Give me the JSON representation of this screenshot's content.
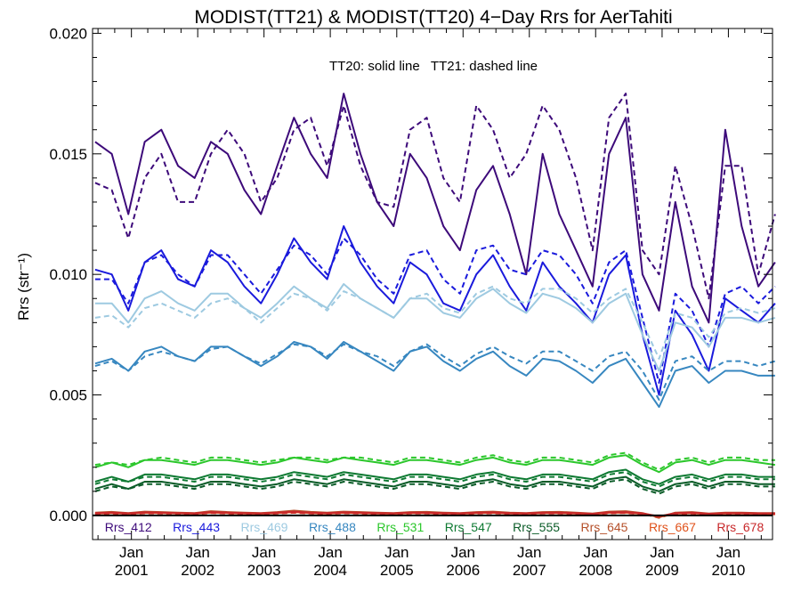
{
  "chart_data": {
    "type": "line",
    "title": "MODIST(TT21) & MODIST(TT20) 4−Day Rrs for AerTahiti",
    "ylabel": "Rrs (str⁻¹)",
    "annotation": "TT20: solid line   TT21: dashed line",
    "x_range": [
      "2000-06-01",
      "2010-09-01"
    ],
    "ylim": [
      -0.001,
      0.0202
    ],
    "yticks": [
      0.0,
      0.005,
      0.01,
      0.015,
      0.02
    ],
    "ytick_labels": [
      "0.000",
      "0.005",
      "0.010",
      "0.015",
      "0.020"
    ],
    "xticks": [
      {
        "date": "2001-01-01",
        "label": "Jan",
        "year": "2001"
      },
      {
        "date": "2002-01-01",
        "label": "Jan",
        "year": "2002"
      },
      {
        "date": "2003-01-01",
        "label": "Jan",
        "year": "2003"
      },
      {
        "date": "2004-01-01",
        "label": "Jan",
        "year": "2004"
      },
      {
        "date": "2005-01-01",
        "label": "Jan",
        "year": "2005"
      },
      {
        "date": "2006-01-01",
        "label": "Jan",
        "year": "2006"
      },
      {
        "date": "2007-01-01",
        "label": "Jan",
        "year": "2007"
      },
      {
        "date": "2008-01-01",
        "label": "Jan",
        "year": "2008"
      },
      {
        "date": "2009-01-01",
        "label": "Jan",
        "year": "2009"
      },
      {
        "date": "2010-01-01",
        "label": "Jan",
        "year": "2010"
      }
    ],
    "x": [
      "2000-06",
      "2000-09",
      "2000-12",
      "2001-03",
      "2001-06",
      "2001-09",
      "2001-12",
      "2002-03",
      "2002-06",
      "2002-09",
      "2002-12",
      "2003-03",
      "2003-06",
      "2003-09",
      "2003-12",
      "2004-03",
      "2004-06",
      "2004-09",
      "2004-12",
      "2005-03",
      "2005-06",
      "2005-09",
      "2005-12",
      "2006-03",
      "2006-06",
      "2006-09",
      "2006-12",
      "2007-03",
      "2007-06",
      "2007-09",
      "2007-12",
      "2008-03",
      "2008-06",
      "2008-09",
      "2008-12",
      "2009-03",
      "2009-06",
      "2009-09",
      "2009-12",
      "2010-03",
      "2010-06",
      "2010-09"
    ],
    "series": [
      {
        "name": "Rrs_412",
        "color": "#3d0a7a",
        "tt20": [
          0.0155,
          0.015,
          0.0125,
          0.0155,
          0.016,
          0.0145,
          0.014,
          0.0155,
          0.015,
          0.0135,
          0.0125,
          0.0145,
          0.0165,
          0.015,
          0.014,
          0.0175,
          0.015,
          0.013,
          0.012,
          0.015,
          0.014,
          0.012,
          0.011,
          0.0135,
          0.0145,
          0.0125,
          0.01,
          0.015,
          0.0125,
          0.011,
          0.0095,
          0.015,
          0.0165,
          0.01,
          0.0085,
          0.013,
          0.0095,
          0.008,
          0.016,
          0.012,
          0.0095,
          0.0105
        ],
        "tt21": [
          0.0138,
          0.0135,
          0.0115,
          0.014,
          0.015,
          0.013,
          0.013,
          0.015,
          0.016,
          0.015,
          0.013,
          0.014,
          0.016,
          0.0165,
          0.0145,
          0.017,
          0.0145,
          0.013,
          0.0128,
          0.016,
          0.0165,
          0.014,
          0.013,
          0.017,
          0.016,
          0.014,
          0.015,
          0.017,
          0.016,
          0.014,
          0.011,
          0.0165,
          0.0175,
          0.011,
          0.01,
          0.0145,
          0.012,
          0.009,
          0.0145,
          0.0145,
          0.01,
          0.0125
        ]
      },
      {
        "name": "Rrs_443",
        "color": "#1a1adc",
        "tt20": [
          0.0102,
          0.01,
          0.0085,
          0.0105,
          0.011,
          0.0098,
          0.0095,
          0.011,
          0.0105,
          0.0095,
          0.0088,
          0.01,
          0.0115,
          0.0105,
          0.0098,
          0.012,
          0.0105,
          0.0095,
          0.0088,
          0.0105,
          0.01,
          0.0088,
          0.0085,
          0.01,
          0.0108,
          0.0095,
          0.0085,
          0.0105,
          0.0095,
          0.0088,
          0.008,
          0.01,
          0.0108,
          0.0075,
          0.005,
          0.0085,
          0.0075,
          0.006,
          0.009,
          0.0085,
          0.008,
          0.0088
        ],
        "tt21": [
          0.0098,
          0.0098,
          0.0088,
          0.0105,
          0.0108,
          0.01,
          0.0095,
          0.0108,
          0.0108,
          0.01,
          0.0092,
          0.0102,
          0.0112,
          0.0108,
          0.01,
          0.0115,
          0.0108,
          0.0098,
          0.0092,
          0.0108,
          0.011,
          0.0098,
          0.0092,
          0.011,
          0.0112,
          0.0102,
          0.01,
          0.011,
          0.0108,
          0.01,
          0.0088,
          0.0105,
          0.011,
          0.0082,
          0.0055,
          0.0092,
          0.0085,
          0.007,
          0.0092,
          0.0095,
          0.0088,
          0.0095
        ]
      },
      {
        "name": "Rrs_469",
        "color": "#9ecae1",
        "tt20": [
          0.0088,
          0.0088,
          0.008,
          0.009,
          0.0093,
          0.0088,
          0.0085,
          0.0092,
          0.0092,
          0.0086,
          0.0082,
          0.0088,
          0.0095,
          0.009,
          0.0086,
          0.0096,
          0.009,
          0.0086,
          0.0082,
          0.009,
          0.009,
          0.0084,
          0.0082,
          0.009,
          0.0094,
          0.0088,
          0.0084,
          0.0092,
          0.009,
          0.0086,
          0.008,
          0.0088,
          0.0092,
          0.0075,
          0.006,
          0.008,
          0.0078,
          0.007,
          0.0082,
          0.0082,
          0.008,
          0.0082
        ],
        "tt21": [
          0.0082,
          0.0083,
          0.0078,
          0.0086,
          0.0088,
          0.0085,
          0.0082,
          0.0088,
          0.009,
          0.0086,
          0.008,
          0.0086,
          0.0092,
          0.009,
          0.0085,
          0.0093,
          0.009,
          0.0086,
          0.0082,
          0.009,
          0.0092,
          0.0086,
          0.0084,
          0.0092,
          0.0095,
          0.009,
          0.0088,
          0.0094,
          0.0094,
          0.009,
          0.0084,
          0.009,
          0.0094,
          0.008,
          0.0065,
          0.0084,
          0.0082,
          0.0074,
          0.0084,
          0.0086,
          0.0084,
          0.0086
        ]
      },
      {
        "name": "Rrs_488",
        "color": "#3787c0",
        "tt20": [
          0.0063,
          0.0065,
          0.006,
          0.0068,
          0.007,
          0.0066,
          0.0064,
          0.007,
          0.007,
          0.0066,
          0.0062,
          0.0066,
          0.0072,
          0.007,
          0.0065,
          0.0072,
          0.0068,
          0.0064,
          0.006,
          0.0068,
          0.007,
          0.0064,
          0.006,
          0.0065,
          0.0068,
          0.0062,
          0.0058,
          0.0065,
          0.0064,
          0.006,
          0.0055,
          0.0062,
          0.0065,
          0.0055,
          0.0045,
          0.006,
          0.0062,
          0.0055,
          0.006,
          0.006,
          0.0058,
          0.0058
        ],
        "tt21": [
          0.0062,
          0.0064,
          0.006,
          0.0066,
          0.0068,
          0.0066,
          0.0064,
          0.0069,
          0.007,
          0.0066,
          0.0063,
          0.0067,
          0.0071,
          0.007,
          0.0066,
          0.0071,
          0.0068,
          0.0066,
          0.0062,
          0.0068,
          0.0071,
          0.0066,
          0.0062,
          0.0067,
          0.007,
          0.0066,
          0.0063,
          0.0068,
          0.0068,
          0.0064,
          0.006,
          0.0066,
          0.0068,
          0.006,
          0.0048,
          0.0064,
          0.0066,
          0.006,
          0.0064,
          0.0064,
          0.0062,
          0.0064
        ]
      },
      {
        "name": "Rrs_531",
        "color": "#2bc72b",
        "tt20": [
          0.002,
          0.0022,
          0.002,
          0.0023,
          0.0023,
          0.0022,
          0.0021,
          0.0023,
          0.0023,
          0.0022,
          0.0021,
          0.0022,
          0.0024,
          0.0023,
          0.0022,
          0.0024,
          0.0023,
          0.0022,
          0.0021,
          0.0023,
          0.0023,
          0.0022,
          0.0021,
          0.0023,
          0.0024,
          0.0022,
          0.0021,
          0.0023,
          0.0023,
          0.0022,
          0.0021,
          0.0024,
          0.0025,
          0.0021,
          0.0018,
          0.0022,
          0.0023,
          0.0021,
          0.0023,
          0.0023,
          0.0022,
          0.0021
        ],
        "tt21": [
          0.0021,
          0.0022,
          0.0021,
          0.0023,
          0.0024,
          0.0023,
          0.0022,
          0.0024,
          0.0024,
          0.0023,
          0.0022,
          0.0023,
          0.0024,
          0.0024,
          0.0023,
          0.0024,
          0.0024,
          0.0023,
          0.0022,
          0.0024,
          0.0024,
          0.0023,
          0.0022,
          0.0024,
          0.0025,
          0.0023,
          0.0022,
          0.0024,
          0.0024,
          0.0023,
          0.0022,
          0.0025,
          0.0026,
          0.0022,
          0.0019,
          0.0023,
          0.0024,
          0.0022,
          0.0024,
          0.0024,
          0.0023,
          0.0023
        ]
      },
      {
        "name": "Rrs_547",
        "color": "#0e7a32",
        "tt20": [
          0.0014,
          0.0016,
          0.0014,
          0.0017,
          0.0017,
          0.0016,
          0.0015,
          0.0017,
          0.0017,
          0.0016,
          0.0015,
          0.0016,
          0.0018,
          0.0017,
          0.0016,
          0.0018,
          0.0017,
          0.0016,
          0.0015,
          0.0017,
          0.0017,
          0.0016,
          0.0015,
          0.0017,
          0.0018,
          0.0016,
          0.0015,
          0.0017,
          0.0017,
          0.0016,
          0.0015,
          0.0018,
          0.0019,
          0.0015,
          0.0013,
          0.0016,
          0.0017,
          0.0015,
          0.0017,
          0.0017,
          0.0016,
          0.0016
        ],
        "tt21": [
          0.0013,
          0.0015,
          0.0014,
          0.0016,
          0.0016,
          0.0015,
          0.0014,
          0.0016,
          0.0016,
          0.0015,
          0.0014,
          0.0015,
          0.0017,
          0.0016,
          0.0015,
          0.0017,
          0.0016,
          0.0015,
          0.0014,
          0.0016,
          0.0016,
          0.0015,
          0.0014,
          0.0016,
          0.0017,
          0.0015,
          0.0014,
          0.0016,
          0.0016,
          0.0015,
          0.0014,
          0.0017,
          0.0018,
          0.0014,
          0.0012,
          0.0015,
          0.0016,
          0.0014,
          0.0016,
          0.0016,
          0.0015,
          0.0015
        ]
      },
      {
        "name": "Rrs_555",
        "color": "#0b5c28",
        "tt20": [
          0.0011,
          0.0013,
          0.0011,
          0.0014,
          0.0014,
          0.0013,
          0.0012,
          0.0014,
          0.0014,
          0.0013,
          0.0012,
          0.0013,
          0.0015,
          0.0014,
          0.0013,
          0.0015,
          0.0014,
          0.0013,
          0.0012,
          0.0014,
          0.0014,
          0.0013,
          0.0012,
          0.0014,
          0.0015,
          0.0013,
          0.0012,
          0.0014,
          0.0014,
          0.0013,
          0.0012,
          0.0015,
          0.0016,
          0.0012,
          0.001,
          0.0013,
          0.0014,
          0.0012,
          0.0014,
          0.0014,
          0.0013,
          0.0013
        ],
        "tt21": [
          0.001,
          0.0012,
          0.0011,
          0.0013,
          0.0013,
          0.0012,
          0.0011,
          0.0013,
          0.0013,
          0.0012,
          0.0011,
          0.0012,
          0.0014,
          0.0013,
          0.0012,
          0.0014,
          0.0013,
          0.0012,
          0.0011,
          0.0013,
          0.0013,
          0.0012,
          0.0011,
          0.0013,
          0.0014,
          0.0012,
          0.0011,
          0.0013,
          0.0013,
          0.0012,
          0.0011,
          0.0014,
          0.0015,
          0.0011,
          0.0009,
          0.0012,
          0.0013,
          0.0011,
          0.0013,
          0.0013,
          0.0012,
          0.0012
        ]
      },
      {
        "name": "Rrs_645",
        "color": "#b5502a",
        "tt20": [
          0.00012,
          0.00015,
          0.0001,
          0.00016,
          0.00014,
          0.00012,
          0.0001,
          0.00018,
          0.00014,
          0.00012,
          0.0001,
          0.00014,
          0.0002,
          0.00015,
          0.00012,
          0.00016,
          0.00014,
          0.00012,
          0.0001,
          0.00014,
          0.00015,
          0.00012,
          0.0001,
          0.00014,
          0.00016,
          0.00012,
          0.0001,
          0.00014,
          0.00015,
          0.00012,
          8e-05,
          0.00016,
          0.00018,
          0.0001,
          -8e-05,
          0.00012,
          0.00014,
          8e-05,
          0.00012,
          0.00012,
          0.0001,
          0.0001
        ],
        "tt21": [
          8e-05,
          0.00012,
          8e-05,
          0.00012,
          0.00012,
          0.0001,
          8e-05,
          0.00014,
          0.00012,
          0.0001,
          8e-05,
          0.00012,
          0.00016,
          0.00012,
          0.0001,
          0.00014,
          0.00012,
          0.0001,
          8e-05,
          0.00012,
          0.00012,
          0.0001,
          8e-05,
          0.00012,
          0.00014,
          0.0001,
          8e-05,
          0.00012,
          0.00012,
          0.0001,
          6e-05,
          0.00012,
          0.00014,
          8e-05,
          -0.0001,
          0.0001,
          0.00012,
          6e-05,
          0.0001,
          0.0001,
          8e-05,
          8e-05
        ]
      },
      {
        "name": "Rrs_667",
        "color": "#e0521b",
        "tt20": [
          8e-05,
          0.0001,
          7e-05,
          0.00011,
          0.0001,
          9e-05,
          7e-05,
          0.00012,
          0.0001,
          8e-05,
          7e-05,
          0.0001,
          0.00014,
          0.0001,
          8e-05,
          0.00011,
          0.0001,
          8e-05,
          7e-05,
          0.0001,
          0.0001,
          8e-05,
          7e-05,
          0.0001,
          0.00011,
          8e-05,
          7e-05,
          0.0001,
          0.0001,
          8e-05,
          5e-05,
          0.00011,
          0.00012,
          7e-05,
          -5e-05,
          8e-05,
          0.0001,
          5e-05,
          8e-05,
          8e-05,
          7e-05,
          7e-05
        ],
        "tt21": [
          6e-05,
          8e-05,
          5e-05,
          9e-05,
          8e-05,
          7e-05,
          5e-05,
          0.0001,
          8e-05,
          6e-05,
          5e-05,
          8e-05,
          0.00011,
          8e-05,
          6e-05,
          9e-05,
          8e-05,
          6e-05,
          5e-05,
          8e-05,
          8e-05,
          6e-05,
          5e-05,
          8e-05,
          9e-05,
          6e-05,
          5e-05,
          8e-05,
          8e-05,
          6e-05,
          3e-05,
          9e-05,
          0.0001,
          5e-05,
          -6e-05,
          6e-05,
          8e-05,
          3e-05,
          6e-05,
          6e-05,
          5e-05,
          5e-05
        ]
      },
      {
        "name": "Rrs_678",
        "color": "#c8282a",
        "tt20": [
          0.0001,
          0.00012,
          9e-05,
          0.00013,
          0.00012,
          0.0001,
          9e-05,
          0.00014,
          0.00012,
          0.0001,
          9e-05,
          0.00012,
          0.00016,
          0.00012,
          0.0001,
          0.00013,
          0.00012,
          0.0001,
          9e-05,
          0.00012,
          0.00012,
          0.0001,
          9e-05,
          0.00012,
          0.00013,
          0.0001,
          9e-05,
          0.00012,
          0.00012,
          0.0001,
          7e-05,
          0.00013,
          0.00014,
          9e-05,
          -4e-05,
          0.0001,
          0.00012,
          7e-05,
          0.0001,
          0.0001,
          9e-05,
          9e-05
        ],
        "tt21": [
          7e-05,
          9e-05,
          6e-05,
          0.0001,
          9e-05,
          8e-05,
          6e-05,
          0.00011,
          9e-05,
          7e-05,
          6e-05,
          9e-05,
          0.00012,
          9e-05,
          7e-05,
          0.0001,
          9e-05,
          7e-05,
          6e-05,
          9e-05,
          9e-05,
          7e-05,
          6e-05,
          9e-05,
          0.0001,
          7e-05,
          6e-05,
          9e-05,
          9e-05,
          7e-05,
          4e-05,
          0.0001,
          0.00011,
          6e-05,
          -5e-05,
          7e-05,
          9e-05,
          4e-05,
          7e-05,
          7e-05,
          6e-05,
          6e-05
        ]
      }
    ]
  }
}
